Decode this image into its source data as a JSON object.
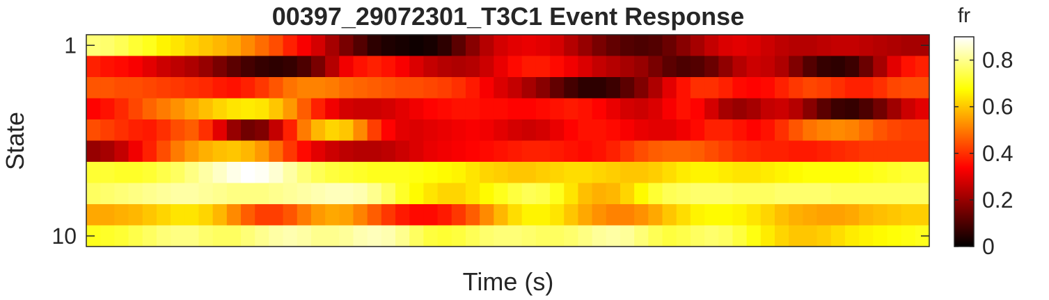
{
  "chart_data": {
    "type": "heatmap",
    "title": "00397_29072301_T3C1 Event Response",
    "xlabel": "Time (s)",
    "ylabel": "State",
    "y_ticks": [
      {
        "state": 1,
        "label": "1"
      },
      {
        "state": 10,
        "label": "10"
      }
    ],
    "x_ticks": [],
    "colormap": "hot",
    "colorbar": {
      "label": "fr",
      "range": [
        0,
        0.9
      ],
      "ticks": [
        {
          "value": 0,
          "label": "0"
        },
        {
          "value": 0.2,
          "label": "0.2"
        },
        {
          "value": 0.4,
          "label": "0.4"
        },
        {
          "value": 0.6,
          "label": "0.6"
        },
        {
          "value": 0.8,
          "label": "0.8"
        }
      ]
    },
    "states": [
      1,
      2,
      3,
      4,
      5,
      6,
      7,
      8,
      9,
      10
    ],
    "num_time_bins": 60,
    "values": [
      [
        0.78,
        0.77,
        0.75,
        0.72,
        0.7,
        0.66,
        0.64,
        0.62,
        0.6,
        0.58,
        0.56,
        0.52,
        0.48,
        0.44,
        0.38,
        0.33,
        0.28,
        0.22,
        0.16,
        0.11,
        0.06,
        0.04,
        0.03,
        0.02,
        0.03,
        0.06,
        0.12,
        0.18,
        0.24,
        0.28,
        0.3,
        0.31,
        0.3,
        0.28,
        0.24,
        0.2,
        0.16,
        0.13,
        0.11,
        0.1,
        0.11,
        0.14,
        0.18,
        0.22,
        0.26,
        0.29,
        0.3,
        0.29,
        0.27,
        0.25,
        0.24,
        0.24,
        0.25,
        0.26,
        0.26,
        0.25,
        0.24,
        0.23,
        0.22,
        0.22
      ],
      [
        0.38,
        0.36,
        0.35,
        0.33,
        0.3,
        0.27,
        0.25,
        0.23,
        0.2,
        0.16,
        0.12,
        0.09,
        0.07,
        0.06,
        0.07,
        0.1,
        0.16,
        0.24,
        0.32,
        0.36,
        0.38,
        0.36,
        0.33,
        0.29,
        0.26,
        0.24,
        0.23,
        0.24,
        0.27,
        0.31,
        0.35,
        0.37,
        0.37,
        0.35,
        0.32,
        0.29,
        0.26,
        0.24,
        0.22,
        0.2,
        0.16,
        0.12,
        0.1,
        0.11,
        0.14,
        0.19,
        0.24,
        0.27,
        0.26,
        0.23,
        0.17,
        0.11,
        0.07,
        0.06,
        0.08,
        0.14,
        0.22,
        0.3,
        0.36,
        0.38
      ],
      [
        0.45,
        0.45,
        0.44,
        0.44,
        0.43,
        0.42,
        0.41,
        0.4,
        0.39,
        0.37,
        0.36,
        0.38,
        0.41,
        0.45,
        0.49,
        0.51,
        0.51,
        0.5,
        0.48,
        0.47,
        0.46,
        0.45,
        0.44,
        0.44,
        0.43,
        0.42,
        0.4,
        0.37,
        0.33,
        0.29,
        0.26,
        0.22,
        0.18,
        0.13,
        0.09,
        0.06,
        0.06,
        0.08,
        0.12,
        0.17,
        0.23,
        0.3,
        0.36,
        0.4,
        0.4,
        0.38,
        0.35,
        0.34,
        0.35,
        0.38,
        0.41,
        0.43,
        0.42,
        0.4,
        0.38,
        0.38,
        0.4,
        0.43,
        0.44,
        0.44
      ],
      [
        0.34,
        0.36,
        0.39,
        0.43,
        0.47,
        0.5,
        0.53,
        0.56,
        0.59,
        0.62,
        0.64,
        0.65,
        0.64,
        0.6,
        0.54,
        0.46,
        0.38,
        0.32,
        0.28,
        0.27,
        0.27,
        0.28,
        0.3,
        0.32,
        0.34,
        0.35,
        0.36,
        0.36,
        0.35,
        0.35,
        0.34,
        0.34,
        0.35,
        0.36,
        0.37,
        0.36,
        0.34,
        0.31,
        0.28,
        0.27,
        0.29,
        0.33,
        0.36,
        0.34,
        0.28,
        0.22,
        0.2,
        0.22,
        0.26,
        0.27,
        0.24,
        0.18,
        0.12,
        0.08,
        0.07,
        0.1,
        0.15,
        0.21,
        0.27,
        0.3
      ],
      [
        0.44,
        0.42,
        0.4,
        0.38,
        0.37,
        0.4,
        0.44,
        0.46,
        0.4,
        0.3,
        0.2,
        0.15,
        0.17,
        0.26,
        0.38,
        0.5,
        0.58,
        0.62,
        0.6,
        0.52,
        0.42,
        0.34,
        0.3,
        0.29,
        0.3,
        0.31,
        0.32,
        0.33,
        0.32,
        0.3,
        0.28,
        0.27,
        0.28,
        0.31,
        0.34,
        0.36,
        0.36,
        0.35,
        0.33,
        0.31,
        0.3,
        0.3,
        0.32,
        0.35,
        0.38,
        0.38,
        0.36,
        0.34,
        0.36,
        0.4,
        0.45,
        0.49,
        0.51,
        0.52,
        0.51,
        0.48,
        0.45,
        0.43,
        0.42,
        0.42
      ],
      [
        0.2,
        0.22,
        0.26,
        0.32,
        0.38,
        0.44,
        0.5,
        0.54,
        0.57,
        0.59,
        0.6,
        0.58,
        0.54,
        0.48,
        0.41,
        0.35,
        0.3,
        0.27,
        0.25,
        0.24,
        0.24,
        0.25,
        0.27,
        0.29,
        0.31,
        0.32,
        0.33,
        0.34,
        0.35,
        0.36,
        0.37,
        0.38,
        0.38,
        0.37,
        0.36,
        0.35,
        0.36,
        0.38,
        0.41,
        0.44,
        0.46,
        0.47,
        0.47,
        0.46,
        0.44,
        0.42,
        0.4,
        0.39,
        0.38,
        0.38,
        0.37,
        0.37,
        0.38,
        0.39,
        0.4,
        0.41,
        0.41,
        0.41,
        0.41,
        0.41
      ],
      [
        0.72,
        0.72,
        0.71,
        0.71,
        0.72,
        0.74,
        0.76,
        0.79,
        0.82,
        0.85,
        0.88,
        0.9,
        0.89,
        0.86,
        0.82,
        0.78,
        0.75,
        0.73,
        0.72,
        0.71,
        0.7,
        0.7,
        0.7,
        0.69,
        0.68,
        0.67,
        0.66,
        0.64,
        0.62,
        0.61,
        0.6,
        0.6,
        0.61,
        0.62,
        0.63,
        0.63,
        0.62,
        0.61,
        0.6,
        0.6,
        0.61,
        0.63,
        0.65,
        0.66,
        0.66,
        0.65,
        0.64,
        0.64,
        0.65,
        0.66,
        0.67,
        0.68,
        0.68,
        0.68,
        0.68,
        0.69,
        0.7,
        0.71,
        0.72,
        0.72
      ],
      [
        0.76,
        0.77,
        0.78,
        0.79,
        0.8,
        0.81,
        0.82,
        0.82,
        0.81,
        0.8,
        0.79,
        0.79,
        0.79,
        0.8,
        0.81,
        0.82,
        0.83,
        0.84,
        0.84,
        0.83,
        0.8,
        0.76,
        0.71,
        0.67,
        0.64,
        0.62,
        0.62,
        0.64,
        0.67,
        0.7,
        0.73,
        0.75,
        0.74,
        0.7,
        0.64,
        0.59,
        0.57,
        0.58,
        0.62,
        0.67,
        0.72,
        0.75,
        0.76,
        0.77,
        0.77,
        0.77,
        0.76,
        0.76,
        0.76,
        0.77,
        0.77,
        0.77,
        0.77,
        0.76,
        0.76,
        0.76,
        0.76,
        0.76,
        0.76,
        0.76
      ],
      [
        0.56,
        0.56,
        0.57,
        0.58,
        0.6,
        0.62,
        0.64,
        0.64,
        0.62,
        0.58,
        0.52,
        0.46,
        0.42,
        0.42,
        0.45,
        0.5,
        0.54,
        0.56,
        0.55,
        0.51,
        0.46,
        0.41,
        0.37,
        0.35,
        0.35,
        0.37,
        0.41,
        0.46,
        0.52,
        0.58,
        0.63,
        0.66,
        0.66,
        0.64,
        0.6,
        0.56,
        0.53,
        0.51,
        0.51,
        0.53,
        0.56,
        0.6,
        0.63,
        0.66,
        0.67,
        0.67,
        0.66,
        0.64,
        0.62,
        0.59,
        0.57,
        0.56,
        0.55,
        0.55,
        0.56,
        0.58,
        0.59,
        0.6,
        0.61,
        0.61
      ],
      [
        0.7,
        0.71,
        0.72,
        0.74,
        0.76,
        0.78,
        0.79,
        0.79,
        0.77,
        0.76,
        0.76,
        0.78,
        0.8,
        0.82,
        0.83,
        0.82,
        0.8,
        0.8,
        0.81,
        0.83,
        0.84,
        0.83,
        0.8,
        0.76,
        0.73,
        0.72,
        0.73,
        0.75,
        0.77,
        0.78,
        0.78,
        0.77,
        0.76,
        0.76,
        0.77,
        0.79,
        0.81,
        0.82,
        0.81,
        0.78,
        0.75,
        0.73,
        0.74,
        0.76,
        0.77,
        0.76,
        0.73,
        0.69,
        0.65,
        0.62,
        0.6,
        0.6,
        0.61,
        0.63,
        0.65,
        0.66,
        0.67,
        0.68,
        0.69,
        0.7
      ]
    ]
  }
}
